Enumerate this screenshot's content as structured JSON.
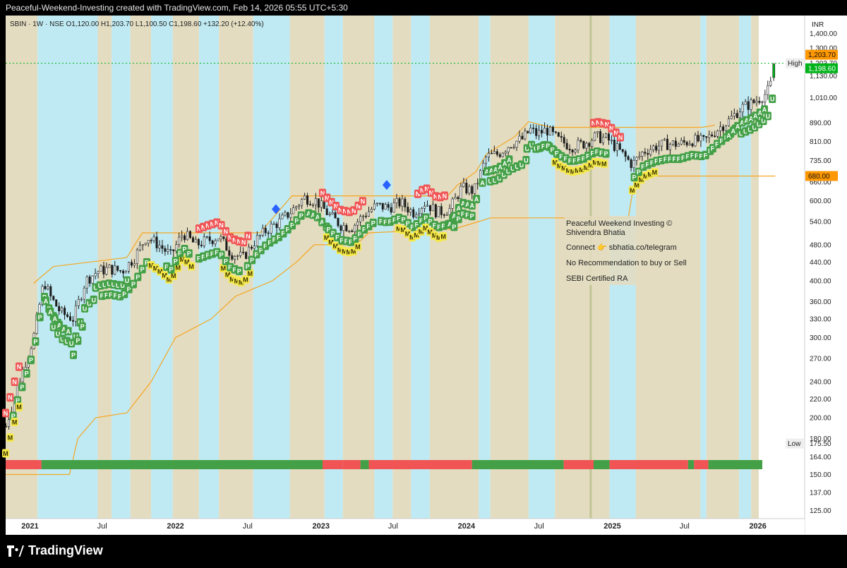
{
  "header": {
    "title": "Peaceful-Weekend-Investing created with TradingView.com, Feb 14, 2026 05:55 UTC+5:30"
  },
  "legend": {
    "text": "SBIN · 1W · NSE  O1,120.00  H1,203.70  L1,100.50  C1,198.60  +132.20 (+12.40%)"
  },
  "footer": {
    "brand": "TradingView"
  },
  "currency": "INR",
  "colors": {
    "up_candle": "#1b1b1b",
    "down_candle": "#1b1b1b",
    "band_cyan": "#bfeaf3",
    "band_khaki": "#e3dcc0",
    "level_line": "#f5a623",
    "bar_green": "#43a047",
    "bar_red": "#f05454",
    "label_green": "#43a047",
    "label_yellow": "#f5e94a",
    "label_red": "#f05454",
    "marker_blue": "#2962ff",
    "price_green": "#00b31a",
    "price_orange": "#ff9800"
  },
  "annotation": {
    "line1": "Peaceful Weekend Investing ©",
    "line2": "Shivendra Bhatia",
    "line3": "Connect 👉 sbhatia.co/telegram",
    "line4": "No Recommendation to buy or Sell",
    "line5": "SEBI Certified RA"
  },
  "price_labels": [
    {
      "label": "High",
      "value": "1,203.70",
      "price": 1203.7,
      "style": "plain"
    },
    {
      "label": "",
      "value": "1,203.70",
      "price": 1203.7,
      "style": "orange",
      "offset": -12
    },
    {
      "label": "",
      "value": "1,198.60",
      "price": 1198.6,
      "style": "green",
      "offset": 6
    },
    {
      "label": "",
      "value": "680.00",
      "price": 680,
      "style": "orange"
    },
    {
      "label": "Low",
      "value": "175.50",
      "price": 175.5,
      "style": "plain"
    }
  ],
  "chart_data": {
    "type": "candlestick",
    "symbol": "SBIN",
    "interval": "1W",
    "exchange": "NSE",
    "y_scale": "log",
    "ylim": [
      120,
      1500
    ],
    "x_range": [
      "2020-11-01",
      "2026-03-01"
    ],
    "y_ticks": [
      1400,
      1300,
      1130,
      1010,
      890,
      810,
      735,
      660,
      600,
      540,
      480,
      440,
      400,
      360,
      330,
      300,
      270,
      240,
      220,
      200,
      180,
      164,
      150,
      137,
      125
    ],
    "y_tick_labels": [
      "1,400.00",
      "1,300.00",
      "1,130.00",
      "1,010.00",
      "890.00",
      "810.00",
      "735.00",
      "660.00",
      "600.00",
      "540.00",
      "480.00",
      "440.00",
      "400.00",
      "360.00",
      "330.00",
      "300.00",
      "270.00",
      "240.00",
      "220.00",
      "200.00",
      "180.00",
      "164.00",
      "150.00",
      "137.00",
      "125.00"
    ],
    "x_ticks": [
      {
        "label": "2021",
        "date": "2021-01-01",
        "bold": true
      },
      {
        "label": "Jul",
        "date": "2021-07-01"
      },
      {
        "label": "2022",
        "date": "2022-01-01",
        "bold": true
      },
      {
        "label": "Jul",
        "date": "2022-07-01"
      },
      {
        "label": "2023",
        "date": "2023-01-01",
        "bold": true
      },
      {
        "label": "Jul",
        "date": "2023-07-01"
      },
      {
        "label": "2024",
        "date": "2024-01-01",
        "bold": true
      },
      {
        "label": "Jul",
        "date": "2024-07-01"
      },
      {
        "label": "2025",
        "date": "2025-01-01",
        "bold": true
      },
      {
        "label": "Jul",
        "date": "2025-07-01"
      },
      {
        "label": "2026",
        "date": "2026-01-01",
        "bold": true
      }
    ],
    "close_path": [
      [
        "2020-11-01",
        190
      ],
      [
        "2020-12-01",
        235
      ],
      [
        "2021-01-10",
        300
      ],
      [
        "2021-02-05",
        400
      ],
      [
        "2021-02-20",
        370
      ],
      [
        "2021-03-20",
        340
      ],
      [
        "2021-04-20",
        330
      ],
      [
        "2021-05-20",
        400
      ],
      [
        "2021-06-20",
        420
      ],
      [
        "2021-07-20",
        425
      ],
      [
        "2021-08-20",
        420
      ],
      [
        "2021-09-20",
        450
      ],
      [
        "2021-10-20",
        500
      ],
      [
        "2021-11-20",
        480
      ],
      [
        "2021-12-20",
        455
      ],
      [
        "2022-01-20",
        510
      ],
      [
        "2022-02-20",
        480
      ],
      [
        "2022-03-20",
        490
      ],
      [
        "2022-04-20",
        500
      ],
      [
        "2022-05-20",
        460
      ],
      [
        "2022-06-20",
        450
      ],
      [
        "2022-07-20",
        490
      ],
      [
        "2022-08-20",
        520
      ],
      [
        "2022-09-20",
        540
      ],
      [
        "2022-10-20",
        570
      ],
      [
        "2022-11-20",
        610
      ],
      [
        "2022-12-20",
        600
      ],
      [
        "2023-01-20",
        560
      ],
      [
        "2023-02-20",
        530
      ],
      [
        "2023-03-20",
        525
      ],
      [
        "2023-04-20",
        560
      ],
      [
        "2023-05-20",
        585
      ],
      [
        "2023-06-20",
        580
      ],
      [
        "2023-07-20",
        595
      ],
      [
        "2023-08-20",
        565
      ],
      [
        "2023-09-20",
        595
      ],
      [
        "2023-10-20",
        565
      ],
      [
        "2023-11-20",
        575
      ],
      [
        "2023-12-20",
        640
      ],
      [
        "2024-01-20",
        630
      ],
      [
        "2024-02-20",
        750
      ],
      [
        "2024-03-20",
        760
      ],
      [
        "2024-04-20",
        800
      ],
      [
        "2024-05-20",
        820
      ],
      [
        "2024-06-10",
        860
      ],
      [
        "2024-06-25",
        840
      ],
      [
        "2024-07-20",
        860
      ],
      [
        "2024-08-20",
        815
      ],
      [
        "2024-09-20",
        790
      ],
      [
        "2024-10-20",
        800
      ],
      [
        "2024-11-20",
        830
      ],
      [
        "2024-12-20",
        820
      ],
      [
        "2025-01-20",
        770
      ],
      [
        "2025-02-20",
        720
      ],
      [
        "2025-03-20",
        770
      ],
      [
        "2025-04-20",
        790
      ],
      [
        "2025-05-20",
        800
      ],
      [
        "2025-06-20",
        800
      ],
      [
        "2025-07-20",
        815
      ],
      [
        "2025-08-20",
        810
      ],
      [
        "2025-09-20",
        860
      ],
      [
        "2025-10-20",
        900
      ],
      [
        "2025-11-20",
        960
      ],
      [
        "2025-12-20",
        985
      ],
      [
        "2026-01-20",
        1030
      ],
      [
        "2026-02-01",
        1065
      ],
      [
        "2026-02-10",
        1198.6
      ]
    ],
    "last_candle": {
      "open": 1120,
      "high": 1203.7,
      "low": 1100.5,
      "close": 1198.6,
      "change": 132.2,
      "change_pct": 12.4
    },
    "high": 1203.7,
    "low": 175.5,
    "horizontal_levels": [
      {
        "price": 1203.7,
        "style": "dotted",
        "color": "green"
      }
    ],
    "upper_channel": [
      [
        "2021-01-10",
        395
      ],
      [
        "2021-03-01",
        430
      ],
      [
        "2021-09-01",
        450
      ],
      [
        "2021-10-10",
        510
      ],
      [
        "2022-08-01",
        510
      ],
      [
        "2022-09-25",
        580
      ],
      [
        "2022-10-20",
        615
      ],
      [
        "2023-11-15",
        615
      ],
      [
        "2023-12-10",
        650
      ],
      [
        "2024-01-25",
        695
      ],
      [
        "2024-02-20",
        760
      ],
      [
        "2024-05-01",
        830
      ],
      [
        "2024-06-05",
        895
      ],
      [
        "2024-08-01",
        870
      ],
      [
        "2025-08-15",
        870
      ],
      [
        "2025-09-15",
        880
      ]
    ],
    "lower_channel": [
      [
        "2020-11-01",
        150
      ],
      [
        "2021-04-10",
        150
      ],
      [
        "2021-05-01",
        180
      ],
      [
        "2021-06-15",
        200
      ],
      [
        "2021-09-01",
        205
      ],
      [
        "2021-11-01",
        240
      ],
      [
        "2022-01-01",
        300
      ],
      [
        "2022-04-01",
        330
      ],
      [
        "2022-06-01",
        370
      ],
      [
        "2022-09-01",
        400
      ],
      [
        "2022-11-01",
        440
      ],
      [
        "2022-12-15",
        480
      ],
      [
        "2023-03-01",
        480
      ],
      [
        "2023-04-10",
        490
      ],
      [
        "2023-05-01",
        510
      ],
      [
        "2023-12-01",
        520
      ],
      [
        "2024-02-01",
        540
      ],
      [
        "2024-03-01",
        550
      ],
      [
        "2025-02-10",
        550
      ],
      [
        "2025-02-25",
        660
      ],
      [
        "2025-03-10",
        680
      ],
      [
        "2026-02-14",
        680
      ]
    ],
    "regime_bar": [
      [
        "2020-11-01",
        "2021-01-30",
        "red"
      ],
      [
        "2021-01-30",
        "2023-01-05",
        "green"
      ],
      [
        "2023-01-05",
        "2023-02-25",
        "red"
      ],
      [
        "2023-02-25",
        "2023-04-10",
        "red"
      ],
      [
        "2023-04-10",
        "2023-05-01",
        "green"
      ],
      [
        "2023-05-01",
        "2024-01-15",
        "red"
      ],
      [
        "2024-01-15",
        "2024-09-01",
        "green"
      ],
      [
        "2024-09-01",
        "2024-11-15",
        "red"
      ],
      [
        "2024-11-15",
        "2024-12-25",
        "green"
      ],
      [
        "2024-12-25",
        "2025-07-10",
        "red"
      ],
      [
        "2025-07-10",
        "2025-07-25",
        "green"
      ],
      [
        "2025-07-25",
        "2025-08-30",
        "red"
      ],
      [
        "2025-08-30",
        "2026-02-14",
        "green"
      ]
    ],
    "background_bands": [
      [
        "2020-11-01",
        "2021-01-20",
        "khaki"
      ],
      [
        "2021-01-20",
        "2021-06-20",
        "cyan"
      ],
      [
        "2021-06-20",
        "2021-07-25",
        "khaki"
      ],
      [
        "2021-07-25",
        "2021-09-10",
        "cyan"
      ],
      [
        "2021-09-10",
        "2021-11-01",
        "khaki"
      ],
      [
        "2021-11-01",
        "2021-12-25",
        "cyan"
      ],
      [
        "2021-12-25",
        "2022-03-01",
        "khaki"
      ],
      [
        "2022-03-01",
        "2022-04-20",
        "cyan"
      ],
      [
        "2022-04-20",
        "2022-07-15",
        "khaki"
      ],
      [
        "2022-07-15",
        "2022-10-15",
        "cyan"
      ],
      [
        "2022-10-15",
        "2023-01-10",
        "khaki"
      ],
      [
        "2023-01-10",
        "2023-02-25",
        "cyan"
      ],
      [
        "2023-02-25",
        "2023-05-15",
        "khaki"
      ],
      [
        "2023-05-15",
        "2023-06-30",
        "cyan"
      ],
      [
        "2023-06-30",
        "2023-08-15",
        "khaki"
      ],
      [
        "2023-08-15",
        "2023-10-01",
        "cyan"
      ],
      [
        "2023-10-01",
        "2024-02-01",
        "khaki"
      ],
      [
        "2024-02-01",
        "2024-03-01",
        "cyan"
      ],
      [
        "2024-03-01",
        "2024-06-05",
        "khaki"
      ],
      [
        "2024-06-05",
        "2024-08-10",
        "cyan"
      ],
      [
        "2024-08-10",
        "2024-12-25",
        "khaki"
      ],
      [
        "2024-12-25",
        "2025-03-01",
        "cyan"
      ],
      [
        "2025-03-01",
        "2025-08-10",
        "khaki"
      ],
      [
        "2025-08-10",
        "2025-08-25",
        "cyan"
      ],
      [
        "2025-08-25",
        "2025-11-15",
        "khaki"
      ],
      [
        "2025-11-15",
        "2025-12-15",
        "cyan"
      ],
      [
        "2025-12-15",
        "2026-02-01",
        "khaki"
      ],
      [
        "2026-02-01",
        "2026-02-14",
        "cyan"
      ]
    ],
    "markers": [
      {
        "date": "2022-09-10",
        "price": 575,
        "shape": "diamond",
        "color": "blue"
      },
      {
        "date": "2023-06-15",
        "price": 650,
        "shape": "diamond",
        "color": "blue"
      }
    ],
    "label_rows": [
      {
        "letter": "N",
        "color": "red",
        "start": "2020-11-01",
        "end": "2020-12-10",
        "offset": -1
      },
      {
        "letter": "P",
        "color": "green",
        "start": "2020-11-20",
        "end": "2021-03-15",
        "offset": 1
      },
      {
        "letter": "M",
        "color": "yellow",
        "start": "2020-11-01",
        "end": "2020-12-05",
        "offset": 2
      },
      {
        "letter": "A",
        "color": "green",
        "start": "2021-02-10",
        "end": "2021-04-10",
        "offset": 1
      },
      {
        "letter": "U",
        "color": "green",
        "start": "2021-03-01",
        "end": "2021-06-10",
        "offset": 2
      },
      {
        "letter": "P",
        "color": "green",
        "start": "2021-04-20",
        "end": "2021-05-15",
        "offset": 3
      },
      {
        "letter": "U",
        "color": "green",
        "start": "2021-06-15",
        "end": "2021-09-10",
        "offset": 1
      },
      {
        "letter": "P",
        "color": "green",
        "start": "2021-07-01",
        "end": "2021-11-15",
        "offset": 2
      },
      {
        "letter": "M",
        "color": "yellow",
        "start": "2021-11-01",
        "end": "2022-02-10",
        "offset": 2
      },
      {
        "letter": "P",
        "color": "green",
        "start": "2021-12-10",
        "end": "2022-02-15",
        "offset": 1
      },
      {
        "letter": "M",
        "color": "yellow",
        "start": "2022-05-01",
        "end": "2022-07-10",
        "offset": 2
      },
      {
        "letter": "N",
        "color": "red",
        "start": "2022-03-01",
        "end": "2022-07-10",
        "offset": -1
      },
      {
        "letter": "P",
        "color": "green",
        "start": "2022-03-01",
        "end": "2022-06-10",
        "offset": 1
      },
      {
        "letter": "P",
        "color": "green",
        "start": "2022-07-01",
        "end": "2022-11-20",
        "offset": 1
      },
      {
        "letter": "A",
        "color": "green",
        "start": "2022-12-01",
        "end": "2023-01-20",
        "offset": 1
      },
      {
        "letter": "M",
        "color": "yellow",
        "start": "2023-01-15",
        "end": "2023-04-10",
        "offset": 2
      },
      {
        "letter": "N",
        "color": "red",
        "start": "2023-01-05",
        "end": "2023-04-20",
        "offset": -1
      },
      {
        "letter": "P",
        "color": "green",
        "start": "2023-01-20",
        "end": "2023-05-20",
        "offset": 1
      },
      {
        "letter": "P",
        "color": "green",
        "start": "2023-06-01",
        "end": "2023-11-30",
        "offset": 1
      },
      {
        "letter": "M",
        "color": "yellow",
        "start": "2023-07-15",
        "end": "2023-11-10",
        "offset": 2
      },
      {
        "letter": "N",
        "color": "red",
        "start": "2023-09-01",
        "end": "2023-11-15",
        "offset": -1
      },
      {
        "letter": "A",
        "color": "green",
        "start": "2023-11-20",
        "end": "2024-02-01",
        "offset": 1
      },
      {
        "letter": "P",
        "color": "green",
        "start": "2023-12-01",
        "end": "2024-01-20",
        "offset": 2
      },
      {
        "letter": "A",
        "color": "green",
        "start": "2024-02-10",
        "end": "2024-04-20",
        "offset": 1
      },
      {
        "letter": "U",
        "color": "green",
        "start": "2024-03-01",
        "end": "2024-06-01",
        "offset": 2
      },
      {
        "letter": "U",
        "color": "green",
        "start": "2024-06-01",
        "end": "2024-08-20",
        "offset": 1
      },
      {
        "letter": "P",
        "color": "green",
        "start": "2024-07-01",
        "end": "2024-12-20",
        "offset": 1
      },
      {
        "letter": "M",
        "color": "yellow",
        "start": "2024-08-10",
        "end": "2024-12-20",
        "offset": 2
      },
      {
        "letter": "N",
        "color": "red",
        "start": "2024-11-15",
        "end": "2025-02-01",
        "offset": -1
      },
      {
        "letter": "M",
        "color": "yellow",
        "start": "2025-02-20",
        "end": "2025-04-20",
        "offset": 2
      },
      {
        "letter": "P",
        "color": "green",
        "start": "2025-02-25",
        "end": "2025-09-10",
        "offset": 1
      },
      {
        "letter": "P",
        "color": "green",
        "start": "2025-09-10",
        "end": "2025-11-10",
        "offset": 1
      },
      {
        "letter": "A",
        "color": "green",
        "start": "2025-10-20",
        "end": "2026-01-20",
        "offset": 1
      },
      {
        "letter": "U",
        "color": "green",
        "start": "2025-11-20",
        "end": "2026-02-10",
        "offset": 2
      }
    ]
  }
}
